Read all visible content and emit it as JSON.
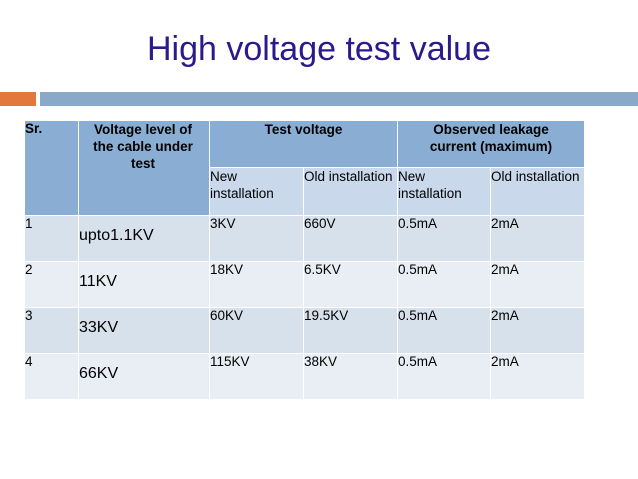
{
  "title": "High voltage test value",
  "table": {
    "headers": {
      "sr": "Sr.",
      "voltage_level": "Voltage   level of the cable under test",
      "test_voltage": "Test voltage",
      "observed_leakage": "Observed leakage current (maximum)",
      "new_installation_1": "New installation",
      "old_installation_1": "Old installation",
      "new_installation_2": "New installation",
      "old_installation_2": "Old installation"
    },
    "rows": [
      {
        "sr": "1",
        "level": "upto1.1KV",
        "tv_new": "3KV",
        "tv_old": "660V",
        "lk_new": "0.5mA",
        "lk_old": "2mA"
      },
      {
        "sr": "2",
        "level": "11KV",
        "tv_new": "18KV",
        "tv_old": "6.5KV",
        "lk_new": "0.5mA",
        "lk_old": "2mA"
      },
      {
        "sr": "3",
        "level": "33KV",
        "tv_new": "60KV",
        "tv_old": "19.5KV",
        "lk_new": "0.5mA",
        "lk_old": "2mA"
      },
      {
        "sr": "4",
        "level": "66KV",
        "tv_new": "115KV",
        "tv_old": "38KV",
        "lk_new": "0.5mA",
        "lk_old": "2mA"
      }
    ]
  }
}
